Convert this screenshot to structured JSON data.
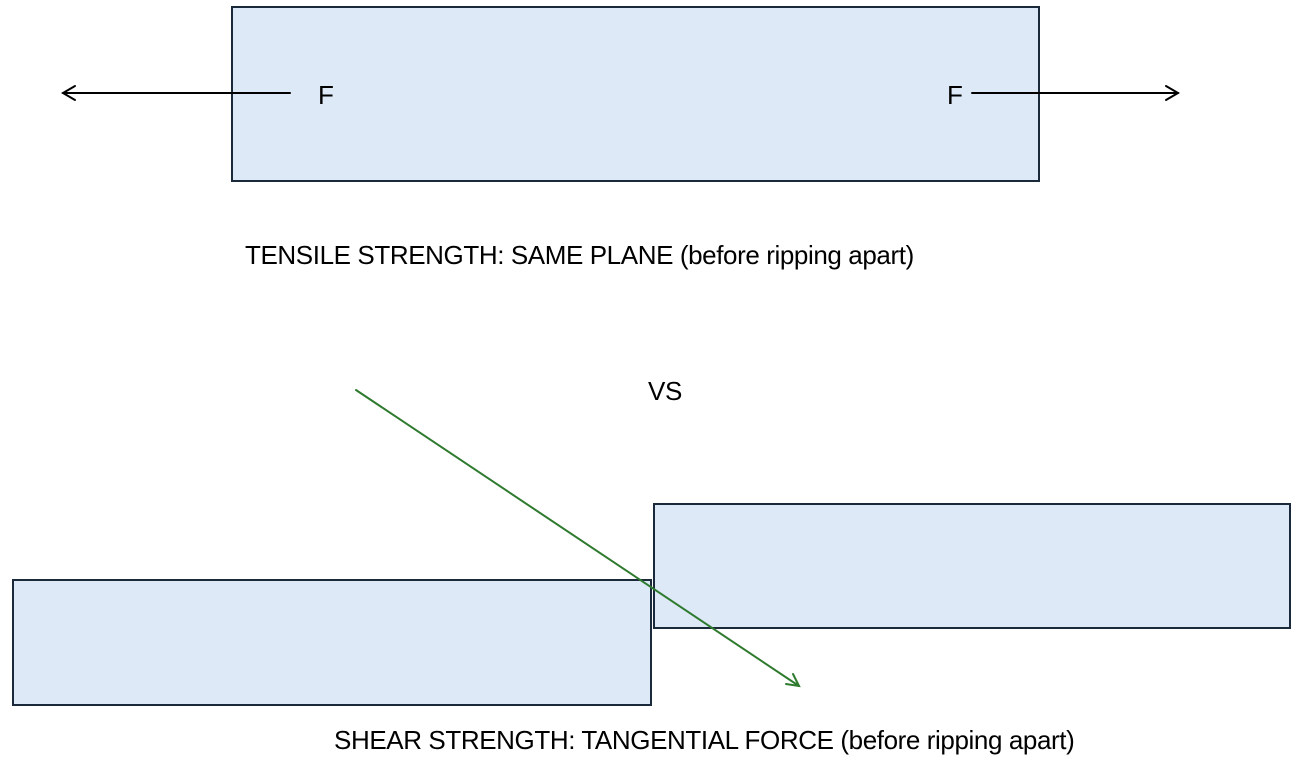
{
  "tensile": {
    "force_left_label": "F",
    "force_right_label": "F",
    "caption": "TENSILE STRENGTH: SAME PLANE (before ripping apart)"
  },
  "separator": {
    "label": "VS"
  },
  "shear": {
    "caption": "SHEAR STRENGTH: TANGENTIAL FORCE (before ripping apart)"
  },
  "colors": {
    "block_fill": "#dde9f6",
    "block_border": "#1b2a3a",
    "force_arrow": "#000000",
    "shear_arrow": "#2e7a2e"
  }
}
